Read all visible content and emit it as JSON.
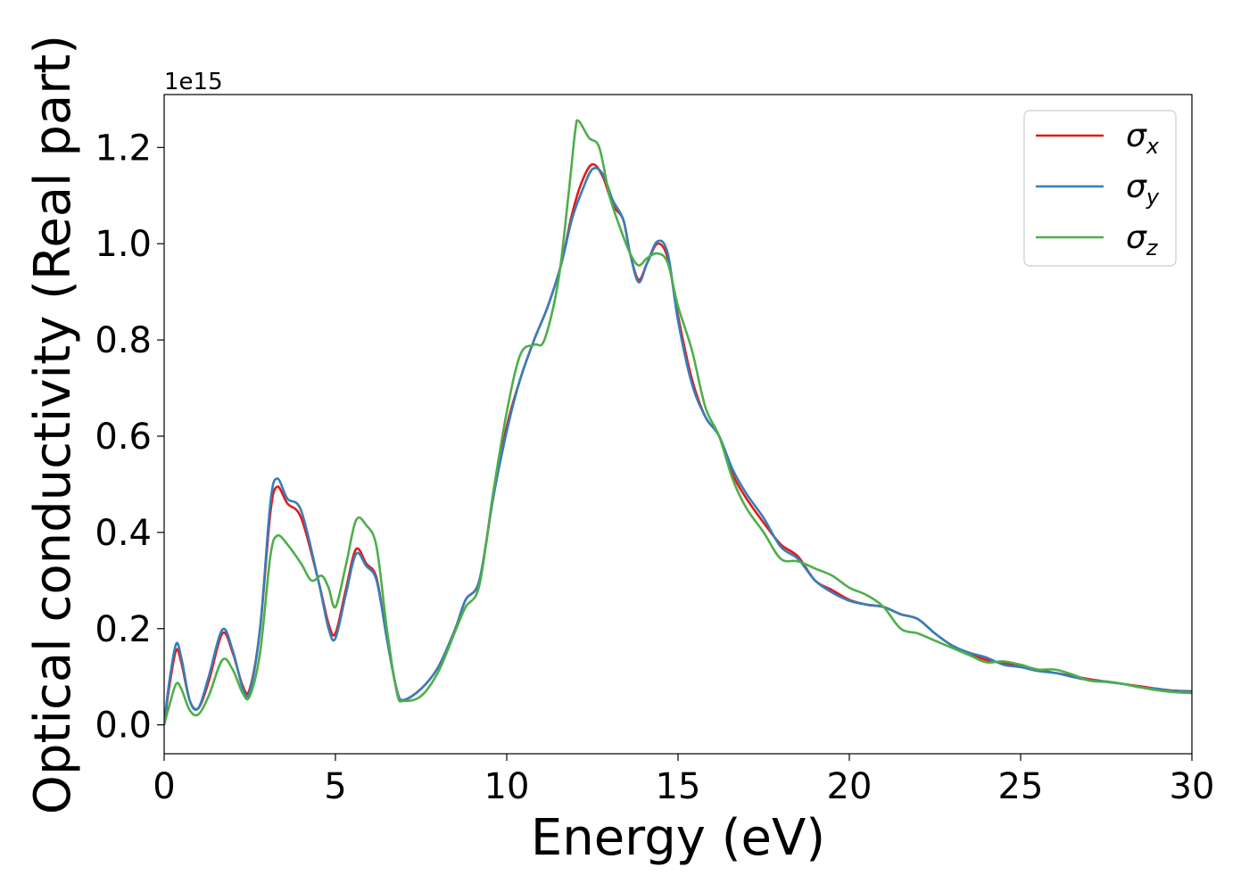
{
  "chart_data": {
    "type": "line",
    "title": "",
    "xlabel": "Energy (eV)",
    "ylabel": "Optical conductivity (Real part)",
    "y_offset_label": "1e15",
    "xlim": [
      0,
      30
    ],
    "ylim": [
      -0.06,
      1.31
    ],
    "x_ticks": [
      0,
      5,
      10,
      15,
      20,
      25,
      30
    ],
    "x_tick_labels": [
      "0",
      "5",
      "10",
      "15",
      "20",
      "25",
      "30"
    ],
    "y_ticks": [
      0.0,
      0.2,
      0.4,
      0.6,
      0.8,
      1.0,
      1.2
    ],
    "y_tick_labels": [
      "0.0",
      "0.2",
      "0.4",
      "0.6",
      "0.8",
      "1.0",
      "1.2"
    ],
    "grid": false,
    "legend_position": "top-right",
    "series": [
      {
        "name": "σx",
        "symbol": "σ",
        "subscript": "x",
        "color": "#e41a1c",
        "points": [
          [
            0,
            0
          ],
          [
            0.15,
            0.08
          ],
          [
            0.35,
            0.155
          ],
          [
            0.5,
            0.13
          ],
          [
            0.75,
            0.05
          ],
          [
            1.0,
            0.035
          ],
          [
            1.3,
            0.09
          ],
          [
            1.7,
            0.19
          ],
          [
            2.0,
            0.15
          ],
          [
            2.3,
            0.08
          ],
          [
            2.5,
            0.075
          ],
          [
            2.8,
            0.2
          ],
          [
            3.1,
            0.44
          ],
          [
            3.3,
            0.495
          ],
          [
            3.6,
            0.46
          ],
          [
            4.0,
            0.43
          ],
          [
            4.5,
            0.3
          ],
          [
            4.8,
            0.21
          ],
          [
            5.0,
            0.19
          ],
          [
            5.3,
            0.28
          ],
          [
            5.6,
            0.365
          ],
          [
            5.9,
            0.335
          ],
          [
            6.2,
            0.305
          ],
          [
            6.5,
            0.18
          ],
          [
            6.8,
            0.07
          ],
          [
            7.0,
            0.052
          ],
          [
            7.5,
            0.075
          ],
          [
            8.0,
            0.12
          ],
          [
            8.5,
            0.2
          ],
          [
            8.8,
            0.26
          ],
          [
            9.2,
            0.3
          ],
          [
            9.6,
            0.47
          ],
          [
            10.0,
            0.62
          ],
          [
            10.4,
            0.72
          ],
          [
            10.8,
            0.8
          ],
          [
            11.2,
            0.87
          ],
          [
            11.6,
            0.96
          ],
          [
            11.9,
            1.06
          ],
          [
            12.2,
            1.13
          ],
          [
            12.5,
            1.165
          ],
          [
            12.8,
            1.14
          ],
          [
            13.1,
            1.08
          ],
          [
            13.4,
            1.05
          ],
          [
            13.6,
            0.98
          ],
          [
            13.85,
            0.925
          ],
          [
            14.1,
            0.96
          ],
          [
            14.4,
            1.0
          ],
          [
            14.7,
            0.97
          ],
          [
            15.0,
            0.85
          ],
          [
            15.4,
            0.72
          ],
          [
            15.8,
            0.64
          ],
          [
            16.2,
            0.6
          ],
          [
            16.6,
            0.52
          ],
          [
            17.0,
            0.47
          ],
          [
            17.5,
            0.42
          ],
          [
            18.0,
            0.375
          ],
          [
            18.5,
            0.35
          ],
          [
            19.0,
            0.3
          ],
          [
            19.5,
            0.28
          ],
          [
            20.0,
            0.26
          ],
          [
            20.5,
            0.25
          ],
          [
            21.0,
            0.245
          ],
          [
            21.5,
            0.23
          ],
          [
            22.0,
            0.22
          ],
          [
            22.5,
            0.19
          ],
          [
            23.0,
            0.165
          ],
          [
            23.5,
            0.148
          ],
          [
            24.0,
            0.135
          ],
          [
            24.5,
            0.128
          ],
          [
            25.0,
            0.122
          ],
          [
            25.5,
            0.115
          ],
          [
            26.0,
            0.108
          ],
          [
            26.5,
            0.102
          ],
          [
            27.0,
            0.095
          ],
          [
            27.5,
            0.09
          ],
          [
            28.0,
            0.085
          ],
          [
            28.5,
            0.08
          ],
          [
            29.0,
            0.075
          ],
          [
            29.5,
            0.071
          ],
          [
            30.0,
            0.07
          ]
        ]
      },
      {
        "name": "σy",
        "symbol": "σ",
        "subscript": "y",
        "color": "#377eb8",
        "points": [
          [
            0,
            0
          ],
          [
            0.15,
            0.09
          ],
          [
            0.35,
            0.168
          ],
          [
            0.5,
            0.14
          ],
          [
            0.75,
            0.05
          ],
          [
            1.0,
            0.035
          ],
          [
            1.3,
            0.1
          ],
          [
            1.7,
            0.198
          ],
          [
            2.0,
            0.155
          ],
          [
            2.3,
            0.075
          ],
          [
            2.5,
            0.07
          ],
          [
            2.8,
            0.2
          ],
          [
            3.1,
            0.46
          ],
          [
            3.3,
            0.512
          ],
          [
            3.6,
            0.47
          ],
          [
            4.0,
            0.445
          ],
          [
            4.5,
            0.3
          ],
          [
            4.8,
            0.2
          ],
          [
            5.0,
            0.18
          ],
          [
            5.3,
            0.27
          ],
          [
            5.6,
            0.355
          ],
          [
            5.9,
            0.33
          ],
          [
            6.2,
            0.3
          ],
          [
            6.5,
            0.18
          ],
          [
            6.8,
            0.07
          ],
          [
            7.0,
            0.052
          ],
          [
            7.5,
            0.075
          ],
          [
            8.0,
            0.12
          ],
          [
            8.5,
            0.2
          ],
          [
            8.8,
            0.26
          ],
          [
            9.2,
            0.3
          ],
          [
            9.6,
            0.47
          ],
          [
            10.0,
            0.61
          ],
          [
            10.4,
            0.72
          ],
          [
            10.8,
            0.8
          ],
          [
            11.2,
            0.87
          ],
          [
            11.6,
            0.96
          ],
          [
            11.9,
            1.05
          ],
          [
            12.2,
            1.11
          ],
          [
            12.5,
            1.155
          ],
          [
            12.8,
            1.145
          ],
          [
            13.1,
            1.09
          ],
          [
            13.4,
            1.05
          ],
          [
            13.6,
            0.98
          ],
          [
            13.85,
            0.92
          ],
          [
            14.1,
            0.96
          ],
          [
            14.4,
            1.005
          ],
          [
            14.7,
            0.98
          ],
          [
            15.0,
            0.84
          ],
          [
            15.4,
            0.71
          ],
          [
            15.8,
            0.64
          ],
          [
            16.2,
            0.6
          ],
          [
            16.6,
            0.53
          ],
          [
            17.0,
            0.48
          ],
          [
            17.5,
            0.43
          ],
          [
            18.0,
            0.37
          ],
          [
            18.5,
            0.345
          ],
          [
            19.0,
            0.3
          ],
          [
            19.5,
            0.275
          ],
          [
            20.0,
            0.258
          ],
          [
            20.5,
            0.25
          ],
          [
            21.0,
            0.245
          ],
          [
            21.5,
            0.23
          ],
          [
            22.0,
            0.22
          ],
          [
            22.5,
            0.19
          ],
          [
            23.0,
            0.165
          ],
          [
            23.5,
            0.15
          ],
          [
            24.0,
            0.14
          ],
          [
            24.5,
            0.125
          ],
          [
            25.0,
            0.12
          ],
          [
            25.5,
            0.112
          ],
          [
            26.0,
            0.108
          ],
          [
            26.5,
            0.1
          ],
          [
            27.0,
            0.093
          ],
          [
            27.5,
            0.09
          ],
          [
            28.0,
            0.085
          ],
          [
            28.5,
            0.078
          ],
          [
            29.0,
            0.075
          ],
          [
            29.5,
            0.07
          ],
          [
            30.0,
            0.07
          ]
        ]
      },
      {
        "name": "σz",
        "symbol": "σ",
        "subscript": "z",
        "color": "#4daf4a",
        "points": [
          [
            0,
            0
          ],
          [
            0.15,
            0.04
          ],
          [
            0.35,
            0.085
          ],
          [
            0.5,
            0.075
          ],
          [
            0.75,
            0.03
          ],
          [
            1.0,
            0.022
          ],
          [
            1.3,
            0.06
          ],
          [
            1.7,
            0.135
          ],
          [
            2.0,
            0.115
          ],
          [
            2.3,
            0.065
          ],
          [
            2.5,
            0.06
          ],
          [
            2.8,
            0.15
          ],
          [
            3.1,
            0.35
          ],
          [
            3.3,
            0.393
          ],
          [
            3.6,
            0.375
          ],
          [
            4.0,
            0.335
          ],
          [
            4.3,
            0.3
          ],
          [
            4.6,
            0.31
          ],
          [
            4.8,
            0.285
          ],
          [
            5.0,
            0.245
          ],
          [
            5.3,
            0.33
          ],
          [
            5.6,
            0.425
          ],
          [
            5.9,
            0.415
          ],
          [
            6.2,
            0.37
          ],
          [
            6.5,
            0.2
          ],
          [
            6.8,
            0.065
          ],
          [
            7.0,
            0.05
          ],
          [
            7.5,
            0.06
          ],
          [
            8.0,
            0.11
          ],
          [
            8.5,
            0.195
          ],
          [
            8.8,
            0.245
          ],
          [
            9.2,
            0.29
          ],
          [
            9.6,
            0.48
          ],
          [
            10.0,
            0.65
          ],
          [
            10.4,
            0.77
          ],
          [
            10.8,
            0.79
          ],
          [
            11.1,
            0.8
          ],
          [
            11.5,
            0.92
          ],
          [
            11.8,
            1.1
          ],
          [
            12.0,
            1.235
          ],
          [
            12.1,
            1.255
          ],
          [
            12.4,
            1.22
          ],
          [
            12.7,
            1.2
          ],
          [
            13.0,
            1.1
          ],
          [
            13.3,
            1.035
          ],
          [
            13.6,
            0.98
          ],
          [
            13.85,
            0.955
          ],
          [
            14.1,
            0.97
          ],
          [
            14.4,
            0.98
          ],
          [
            14.7,
            0.96
          ],
          [
            15.0,
            0.87
          ],
          [
            15.4,
            0.78
          ],
          [
            15.8,
            0.66
          ],
          [
            16.2,
            0.6
          ],
          [
            16.6,
            0.51
          ],
          [
            17.0,
            0.45
          ],
          [
            17.5,
            0.4
          ],
          [
            18.0,
            0.345
          ],
          [
            18.5,
            0.34
          ],
          [
            19.0,
            0.325
          ],
          [
            19.5,
            0.31
          ],
          [
            20.0,
            0.285
          ],
          [
            20.5,
            0.27
          ],
          [
            21.0,
            0.245
          ],
          [
            21.5,
            0.2
          ],
          [
            22.0,
            0.19
          ],
          [
            22.5,
            0.175
          ],
          [
            23.0,
            0.16
          ],
          [
            23.5,
            0.145
          ],
          [
            24.0,
            0.13
          ],
          [
            24.5,
            0.132
          ],
          [
            25.0,
            0.125
          ],
          [
            25.5,
            0.115
          ],
          [
            26.0,
            0.115
          ],
          [
            26.5,
            0.105
          ],
          [
            27.0,
            0.092
          ],
          [
            27.5,
            0.089
          ],
          [
            28.0,
            0.085
          ],
          [
            28.5,
            0.078
          ],
          [
            29.0,
            0.072
          ],
          [
            29.5,
            0.068
          ],
          [
            30.0,
            0.066
          ]
        ]
      }
    ]
  }
}
